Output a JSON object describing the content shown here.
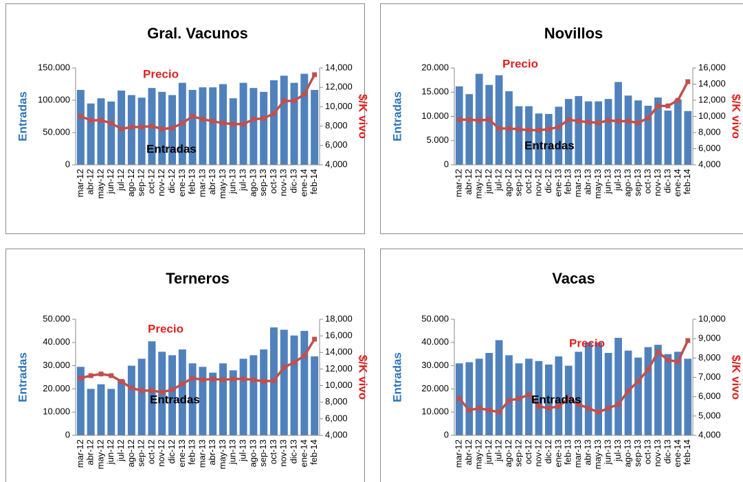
{
  "chart_data": [
    {
      "type": "bar-line",
      "title": "Gral. Vacunos",
      "y_label": "Entradas",
      "y2_label": "$/K vivo",
      "categories": [
        "mar-12",
        "abr-12",
        "may-12",
        "jun-12",
        "jul-12",
        "ago-12",
        "sep-12",
        "oct-12",
        "nov-12",
        "dic-12",
        "ene-13",
        "feb-13",
        "mar-13",
        "abr-13",
        "may-13",
        "jun-13",
        "jul-13",
        "ago-13",
        "sep-13",
        "oct-13",
        "nov-13",
        "dic-13",
        "ene-14",
        "feb-14"
      ],
      "series": [
        {
          "name": "Entradas",
          "kind": "bar",
          "color": "#4f81bd",
          "values": [
            116000,
            95000,
            103000,
            98000,
            115000,
            108000,
            104000,
            119000,
            113000,
            108000,
            127000,
            116000,
            120000,
            120000,
            125000,
            103000,
            127000,
            119000,
            113000,
            131000,
            138000,
            127000,
            141000,
            116000
          ]
        },
        {
          "name": "Precio",
          "kind": "line",
          "axis": "y2",
          "color": "#c0504d",
          "values": [
            9000,
            8600,
            8600,
            8300,
            7700,
            7900,
            7900,
            8000,
            7700,
            7800,
            8300,
            9000,
            8700,
            8500,
            8300,
            8200,
            8200,
            8700,
            8800,
            9300,
            10600,
            10600,
            11300,
            13300
          ]
        }
      ],
      "ylim": [
        0,
        150000
      ],
      "yticks": [
        0,
        {
          "value": 50000,
          "label": "50.000"
        },
        {
          "value": 100000,
          "label": "100.000"
        },
        {
          "value": 150000,
          "label": "150.000"
        }
      ],
      "y2lim": [
        4000,
        14000
      ],
      "y2ticks": [
        {
          "value": 4000,
          "label": "4,000"
        },
        {
          "value": 6000,
          "label": "6,000"
        },
        {
          "value": 8000,
          "label": "8,000"
        },
        {
          "value": 10000,
          "label": "10,000"
        },
        {
          "value": 12000,
          "label": "12,000"
        },
        {
          "value": 14000,
          "label": "14,000"
        }
      ]
    },
    {
      "type": "bar-line",
      "title": "Novillos",
      "y_label": "Entradas",
      "y2_label": "$/K vivo",
      "categories": [
        "mar-12",
        "abr-12",
        "may-12",
        "jun-12",
        "jul-12",
        "ago-12",
        "sep-12",
        "oct-12",
        "nov-12",
        "dic-12",
        "ene-13",
        "feb-13",
        "mar-13",
        "abr-13",
        "may-13",
        "jun-13",
        "jul-13",
        "ago-13",
        "sep-13",
        "oct-13",
        "nov-13",
        "dic-13",
        "ene-14",
        "feb-14"
      ],
      "series": [
        {
          "name": "Entradas",
          "kind": "bar",
          "color": "#4f81bd",
          "values": [
            16200,
            14600,
            18800,
            16500,
            18500,
            15200,
            12100,
            12100,
            10600,
            10500,
            12000,
            13600,
            14200,
            13100,
            13100,
            13600,
            17100,
            14300,
            13300,
            12200,
            13900,
            11200,
            13500,
            11100
          ]
        },
        {
          "name": "Precio",
          "kind": "line",
          "axis": "y2",
          "color": "#c0504d",
          "values": [
            9600,
            9600,
            9500,
            9600,
            8500,
            8500,
            8400,
            8300,
            8300,
            8400,
            8700,
            9600,
            9400,
            9300,
            9200,
            9500,
            9400,
            9400,
            9200,
            9800,
            11300,
            11300,
            12000,
            14300
          ]
        }
      ],
      "ylim": [
        0,
        20000
      ],
      "yticks": [
        0,
        {
          "value": 5000,
          "label": "5.000"
        },
        {
          "value": 10000,
          "label": "10.000"
        },
        {
          "value": 15000,
          "label": "15.000"
        },
        {
          "value": 20000,
          "label": "20.000"
        }
      ],
      "y2lim": [
        4000,
        16000
      ],
      "y2ticks": [
        {
          "value": 4000,
          "label": "4,000"
        },
        {
          "value": 6000,
          "label": "6,000"
        },
        {
          "value": 8000,
          "label": "8,000"
        },
        {
          "value": 10000,
          "label": "10,000"
        },
        {
          "value": 12000,
          "label": "12,000"
        },
        {
          "value": 14000,
          "label": "14,000"
        },
        {
          "value": 16000,
          "label": "16,000"
        }
      ]
    },
    {
      "type": "bar-line",
      "title": "Terneros",
      "y_label": "Entradas",
      "y2_label": "$/K vivo",
      "categories": [
        "mar-12",
        "abr-12",
        "may-12",
        "jun-12",
        "jul-12",
        "ago-12",
        "sep-12",
        "oct-12",
        "nov-12",
        "dic-12",
        "ene-13",
        "feb-13",
        "mar-13",
        "abr-13",
        "may-13",
        "jun-13",
        "jul-13",
        "ago-13",
        "sep-13",
        "oct-13",
        "nov-13",
        "dic-13",
        "ene-14",
        "feb-14"
      ],
      "series": [
        {
          "name": "Entradas",
          "kind": "bar",
          "color": "#4f81bd",
          "values": [
            29500,
            20000,
            22000,
            20000,
            24000,
            30000,
            33000,
            40500,
            36000,
            34500,
            37000,
            31000,
            29500,
            27000,
            31000,
            28000,
            33000,
            34500,
            37000,
            46500,
            45500,
            43000,
            45000,
            34000
          ]
        },
        {
          "name": "Precio",
          "kind": "line",
          "axis": "y2",
          "color": "#c0504d",
          "values": [
            10900,
            11200,
            11400,
            11200,
            10500,
            9700,
            9400,
            9400,
            9200,
            9500,
            10200,
            10900,
            10700,
            10800,
            10700,
            10800,
            10800,
            10700,
            10500,
            10600,
            12200,
            12800,
            13600,
            15600
          ]
        }
      ],
      "ylim": [
        0,
        50000
      ],
      "yticks": [
        0,
        {
          "value": 10000,
          "label": "10.000"
        },
        {
          "value": 20000,
          "label": "20.000"
        },
        {
          "value": 30000,
          "label": "30.000"
        },
        {
          "value": 40000,
          "label": "40.000"
        },
        {
          "value": 50000,
          "label": "50.000"
        }
      ],
      "y2lim": [
        4000,
        18000
      ],
      "y2ticks": [
        {
          "value": 4000,
          "label": "4,000"
        },
        {
          "value": 6000,
          "label": "6,000"
        },
        {
          "value": 8000,
          "label": "8,000"
        },
        {
          "value": 10000,
          "label": "10,000"
        },
        {
          "value": 12000,
          "label": "12,000"
        },
        {
          "value": 14000,
          "label": "14,000"
        },
        {
          "value": 16000,
          "label": "16,000"
        },
        {
          "value": 18000,
          "label": "18,000"
        }
      ]
    },
    {
      "type": "bar-line",
      "title": "Vacas",
      "y_label": "Entradas",
      "y2_label": "$/K vivo",
      "categories": [
        "mar-12",
        "abr-12",
        "may-12",
        "jun-12",
        "jul-12",
        "ago-12",
        "sep-12",
        "oct-12",
        "nov-12",
        "dic-12",
        "ene-13",
        "feb-13",
        "mar-13",
        "abr-13",
        "may-13",
        "jun-13",
        "jul-13",
        "ago-13",
        "sep-13",
        "oct-13",
        "nov-13",
        "dic-13",
        "ene-14",
        "feb-14"
      ],
      "series": [
        {
          "name": "Entradas",
          "kind": "bar",
          "color": "#4f81bd",
          "values": [
            31000,
            31500,
            33000,
            35500,
            41000,
            34500,
            31000,
            33000,
            32000,
            30500,
            34000,
            30000,
            36000,
            40000,
            40000,
            35500,
            42000,
            36500,
            33500,
            38000,
            39000,
            35000,
            36000,
            33000
          ]
        },
        {
          "name": "Precio",
          "kind": "line",
          "axis": "y2",
          "color": "#c0504d",
          "values": [
            5900,
            5300,
            5400,
            5300,
            5200,
            5800,
            5900,
            6100,
            5500,
            5400,
            5500,
            5900,
            5600,
            5400,
            5200,
            5400,
            5600,
            6300,
            6800,
            7400,
            8300,
            7900,
            7800,
            8900
          ]
        }
      ],
      "ylim": [
        0,
        50000
      ],
      "yticks": [
        0,
        {
          "value": 10000,
          "label": "10.000"
        },
        {
          "value": 20000,
          "label": "20.000"
        },
        {
          "value": 30000,
          "label": "30.000"
        },
        {
          "value": 40000,
          "label": "40.000"
        },
        {
          "value": 50000,
          "label": "50.000"
        }
      ],
      "y2lim": [
        4000,
        10000
      ],
      "y2ticks": [
        {
          "value": 4000,
          "label": "4,000"
        },
        {
          "value": 5000,
          "label": "5,000"
        },
        {
          "value": 6000,
          "label": "6,000"
        },
        {
          "value": 7000,
          "label": "7,000"
        },
        {
          "value": 8000,
          "label": "8,000"
        },
        {
          "value": 9000,
          "label": "9,000"
        },
        {
          "value": 10000,
          "label": "10,000"
        }
      ]
    }
  ]
}
